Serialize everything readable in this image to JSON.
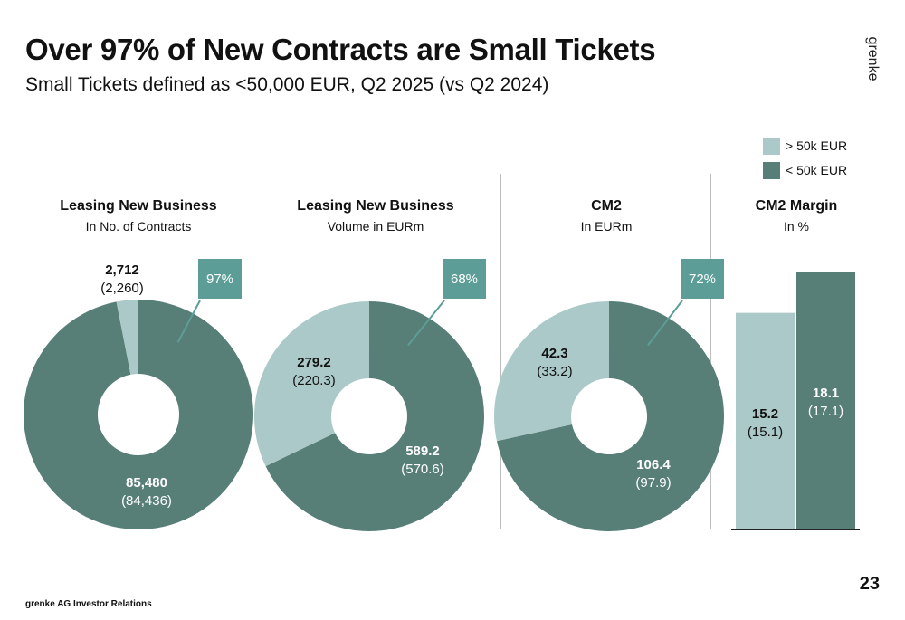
{
  "header": {
    "title": "Over 97% of New Contracts are Small Tickets",
    "subtitle": "Small Tickets defined as <50,000 EUR, Q2 2025 (vs Q2 2024)",
    "brand": "grenke"
  },
  "legend": [
    {
      "label": "> 50k EUR",
      "color": "#aac9c8"
    },
    {
      "label": "< 50k EUR",
      "color": "#577f78"
    }
  ],
  "colors": {
    "small": "#577f78",
    "large": "#aac9c8",
    "badge": "#5c9e97"
  },
  "panels": [
    {
      "title": "Leasing New Business",
      "subtitle": "In No. of Contracts"
    },
    {
      "title": "Leasing New Business",
      "subtitle": "Volume in EURm"
    },
    {
      "title": "CM2",
      "subtitle": "In EURm"
    },
    {
      "title": "CM2 Margin",
      "subtitle": "In %"
    }
  ],
  "chart_data": [
    {
      "type": "pie",
      "title": "Leasing New Business",
      "subtitle": "In No. of Contracts",
      "badge": "97%",
      "slices": [
        {
          "name": "< 50k EUR",
          "value": 85480,
          "label": "85,480",
          "prior_label": "(84,436)"
        },
        {
          "name": "> 50k EUR",
          "value": 2712,
          "label": "2,712",
          "prior_label": "(2,260)"
        }
      ]
    },
    {
      "type": "pie",
      "title": "Leasing New Business",
      "subtitle": "Volume in EURm",
      "badge": "68%",
      "slices": [
        {
          "name": "< 50k EUR",
          "value": 589.2,
          "label": "589.2",
          "prior_label": "(570.6)"
        },
        {
          "name": "> 50k EUR",
          "value": 279.2,
          "label": "279.2",
          "prior_label": "(220.3)"
        }
      ]
    },
    {
      "type": "pie",
      "title": "CM2",
      "subtitle": "In EURm",
      "badge": "72%",
      "slices": [
        {
          "name": "< 50k EUR",
          "value": 106.4,
          "label": "106.4",
          "prior_label": "(97.9)"
        },
        {
          "name": "> 50k EUR",
          "value": 42.3,
          "label": "42.3",
          "prior_label": "(33.2)"
        }
      ]
    },
    {
      "type": "bar",
      "title": "CM2 Margin",
      "subtitle": "In %",
      "categories": [
        "> 50k EUR",
        "< 50k EUR"
      ],
      "values": [
        15.2,
        18.1
      ],
      "labels": [
        "15.2",
        "18.1"
      ],
      "prior_labels": [
        "(15.1)",
        "(17.1)"
      ]
    }
  ],
  "footer": {
    "text": "grenke AG Investor Relations",
    "page": "23"
  }
}
